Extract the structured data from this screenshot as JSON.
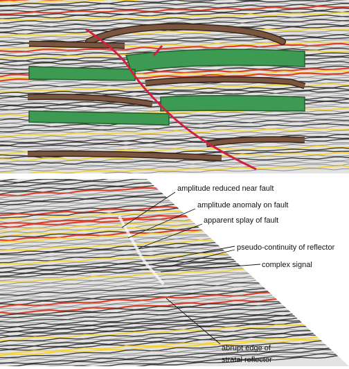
{
  "colors": {
    "background": "#ffffff",
    "seismic_light": "#e3e3e3",
    "seismic_dark": "#3a3a3a",
    "seismic_red": "#d9412a",
    "seismic_yellow": "#f2d23a",
    "horizon_brown": "#7a5640",
    "horizon_green": "#3d9a52",
    "fault_red": "#d1203f",
    "leader_line": "#111111"
  },
  "annotations": [
    {
      "id": "amp-reduced",
      "text": "amplitude reduced near fault"
    },
    {
      "id": "amp-anomaly",
      "text": "amplitude anomaly on fault"
    },
    {
      "id": "splay",
      "text": "apparent splay of fault"
    },
    {
      "id": "pseudo",
      "text": "pseudo-continuity of reflector"
    },
    {
      "id": "complex",
      "text": "complex signal"
    },
    {
      "id": "abrupt",
      "lines": [
        "abrupt edge of",
        "stratal reflector"
      ]
    }
  ]
}
